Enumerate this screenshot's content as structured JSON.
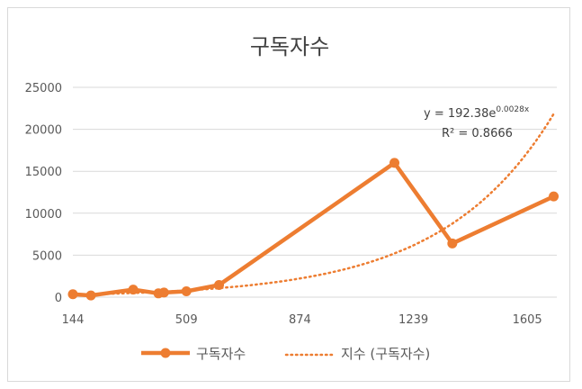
{
  "chart_data": {
    "type": "line",
    "title": "구독자수",
    "xlabel": "",
    "ylabel": "",
    "xlim": [
      144,
      1700
    ],
    "ylim": [
      0,
      25000
    ],
    "x_ticks": [
      "144",
      "509",
      "874",
      "1239",
      "1605"
    ],
    "y_ticks": [
      "0",
      "5000",
      "10000",
      "15000",
      "20000",
      "25000"
    ],
    "grid": true,
    "legend_position": "bottom",
    "colors": {
      "series": "#ed7d31",
      "grid": "#d9d9d9",
      "text": "#595959"
    },
    "series": [
      {
        "name": "구독자수",
        "marker": "circle",
        "x": [
          144,
          202,
          338,
          419,
          437,
          509,
          614,
          1178,
          1364,
          1690
        ],
        "y": [
          350,
          200,
          900,
          450,
          550,
          700,
          1450,
          16000,
          6400,
          12000
        ]
      }
    ],
    "trendline": {
      "name": "지수 (구독자수)",
      "type": "exponential",
      "a": 192.38,
      "b": 0.0028,
      "equation_prefix": "y = 192.38e",
      "equation_exponent": "0.0028x",
      "r_squared_label": "R² = 0.8666"
    }
  }
}
